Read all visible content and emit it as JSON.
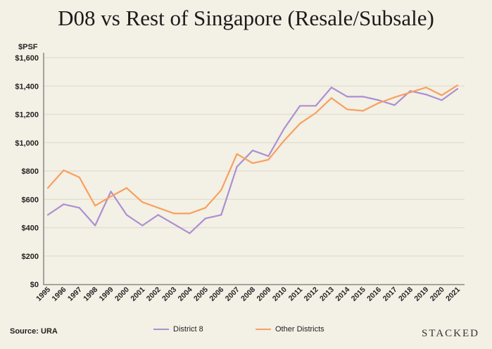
{
  "chart_data": {
    "type": "line",
    "title": "D08 vs Rest of Singapore (Resale/Subsale)",
    "ylabel": "$PSF",
    "xlabel": "",
    "ylim": [
      0,
      1600
    ],
    "yticks": [
      0,
      200,
      400,
      600,
      800,
      1000,
      1200,
      1400,
      1600
    ],
    "ytick_labels": [
      "$0",
      "$200",
      "$400",
      "$600",
      "$800",
      "$1,000",
      "$1,200",
      "$1,400",
      "$1,600"
    ],
    "grid": "horizontal",
    "legend_placement": "bottom",
    "x": [
      "1995",
      "1996",
      "1997",
      "1998",
      "1999",
      "2000",
      "2001",
      "2002",
      "2003",
      "2004",
      "2005",
      "2006",
      "2007",
      "2008",
      "2009",
      "2010",
      "2011",
      "2012",
      "2013",
      "2014",
      "2015",
      "2016",
      "2017",
      "2018",
      "2019",
      "2020",
      "2021"
    ],
    "series": [
      {
        "name": "District 8",
        "color": "#ac8fd2",
        "values": [
          490,
          565,
          540,
          415,
          655,
          490,
          415,
          490,
          425,
          360,
          465,
          490,
          830,
          945,
          905,
          1100,
          1260,
          1260,
          1390,
          1325,
          1325,
          1300,
          1265,
          1365,
          1340,
          1300,
          1380
        ]
      },
      {
        "name": "Other Districts",
        "color": "#f8a05e",
        "values": [
          680,
          805,
          755,
          555,
          620,
          680,
          580,
          540,
          500,
          500,
          540,
          665,
          920,
          855,
          880,
          1015,
          1135,
          1210,
          1315,
          1235,
          1225,
          1280,
          1320,
          1355,
          1390,
          1335,
          1405
        ]
      }
    ]
  },
  "source": "Source: URA",
  "brand": "STACKED"
}
